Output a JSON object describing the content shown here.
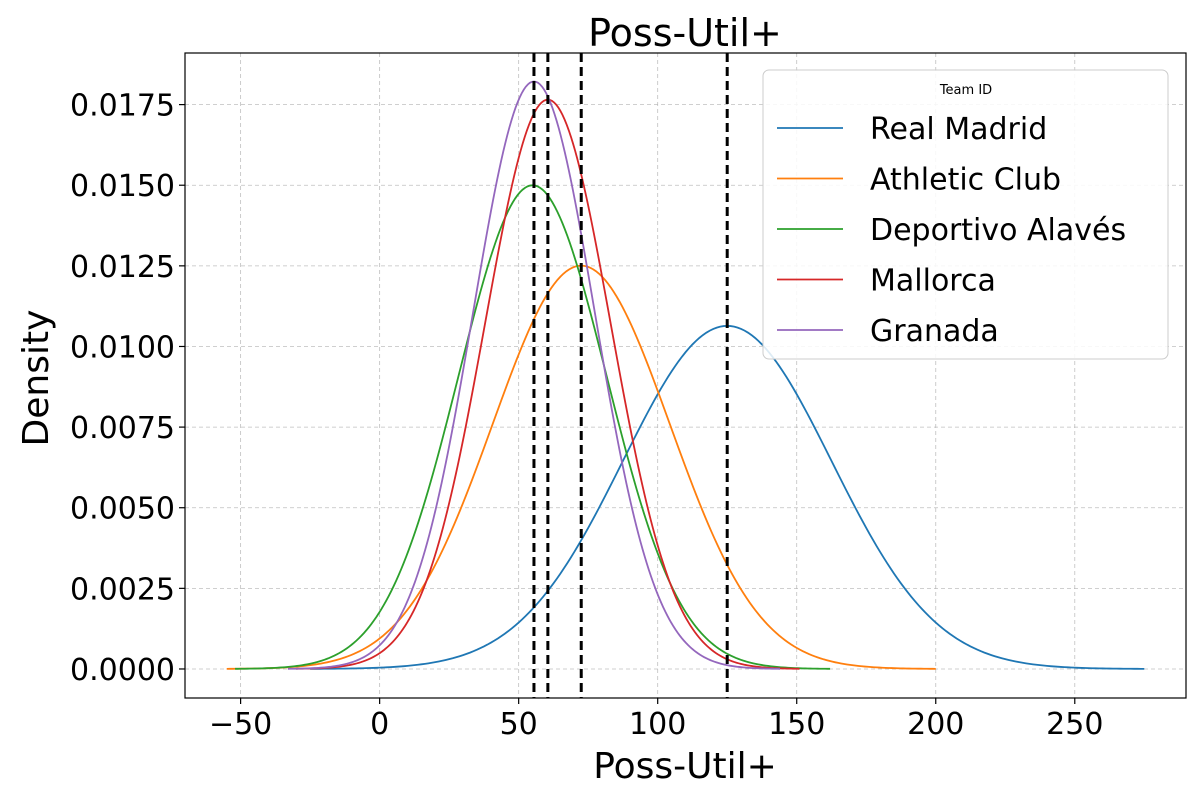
{
  "chart_data": {
    "type": "line",
    "title": "Poss-Util+",
    "xlabel": "Poss-Util+",
    "ylabel": "Density",
    "xlim": [
      -70,
      290
    ],
    "ylim": [
      -0.0009,
      0.0191
    ],
    "xticks": [
      -50,
      0,
      50,
      100,
      150,
      200,
      250
    ],
    "xtick_labels": [
      "−50",
      "0",
      "50",
      "100",
      "150",
      "200",
      "250"
    ],
    "yticks": [
      0.0,
      0.0025,
      0.005,
      0.0075,
      0.01,
      0.0125,
      0.015,
      0.0175
    ],
    "ytick_labels": [
      "0.0000",
      "0.0025",
      "0.0050",
      "0.0075",
      "0.0100",
      "0.0125",
      "0.0150",
      "0.0175"
    ],
    "grid": true,
    "legend": {
      "title": "Team ID",
      "position": "top-right"
    },
    "series": [
      {
        "name": "Real Madrid",
        "color": "#1f77b4",
        "mean": 125,
        "sd": 37.5,
        "x_range": [
          -25,
          275
        ]
      },
      {
        "name": "Athletic Club",
        "color": "#ff7f0e",
        "mean": 72.5,
        "sd": 31.9,
        "x_range": [
          -55,
          200
        ]
      },
      {
        "name": "Deportivo Alavés",
        "color": "#2ca02c",
        "mean": 55,
        "sd": 26.6,
        "x_range": [
          -52,
          162
        ]
      },
      {
        "name": "Mallorca",
        "color": "#d62728",
        "mean": 60.5,
        "sd": 22.6,
        "x_range": [
          -30,
          151
        ]
      },
      {
        "name": "Granada",
        "color": "#9467bd",
        "mean": 55.5,
        "sd": 21.9,
        "x_range": [
          -33,
          144
        ]
      }
    ],
    "vlines": [
      {
        "x": 55.5,
        "style": "dashed",
        "color": "#000000"
      },
      {
        "x": 60.5,
        "style": "dashed",
        "color": "#000000"
      },
      {
        "x": 72.5,
        "style": "dashed",
        "color": "#000000"
      },
      {
        "x": 125,
        "style": "dashed",
        "color": "#000000"
      }
    ]
  }
}
